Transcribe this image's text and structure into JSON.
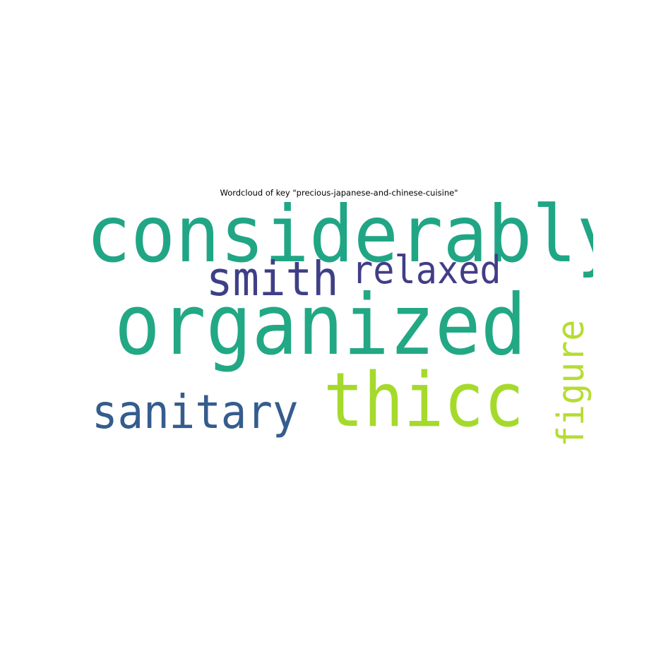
{
  "title": "Wordcloud of key \"precious-japanese-and-chinese-cuisine\"",
  "words": [
    {
      "text": "considerably",
      "color": "#21a685",
      "orientation": "horizontal"
    },
    {
      "text": "organized",
      "color": "#22a884",
      "orientation": "horizontal"
    },
    {
      "text": "smith",
      "color": "#3f3f87",
      "orientation": "horizontal"
    },
    {
      "text": "relaxed",
      "color": "#423d86",
      "orientation": "horizontal"
    },
    {
      "text": "sanitary",
      "color": "#355c8d",
      "orientation": "horizontal"
    },
    {
      "text": "thicc",
      "color": "#a5da2d",
      "orientation": "horizontal"
    },
    {
      "text": "figure",
      "color": "#b5dd32",
      "orientation": "vertical"
    }
  ]
}
